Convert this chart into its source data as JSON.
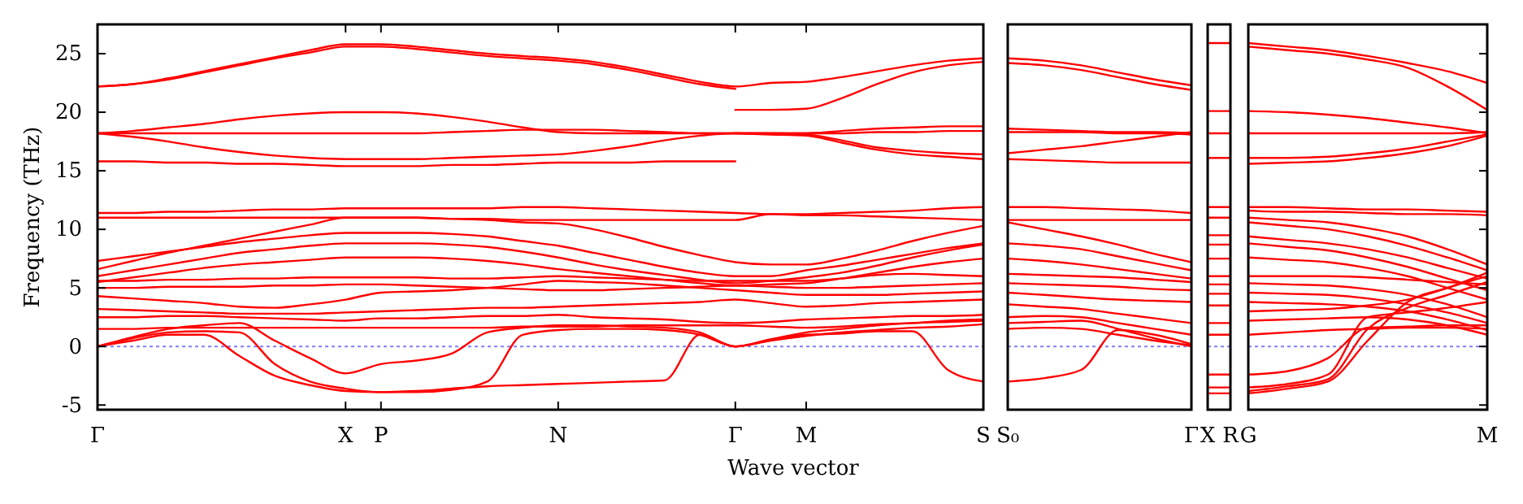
{
  "chart_data": [
    {
      "type": "line",
      "ylabel": "Frequency (THz)",
      "xlabel": "Wave vector",
      "ylim": [
        -5.4,
        27.5
      ],
      "yticks": [
        -5,
        0,
        5,
        10,
        15,
        20,
        25
      ],
      "categories": [
        "Γ",
        null,
        null,
        null,
        null,
        null,
        null,
        "X",
        "P",
        null,
        null,
        null,
        null,
        "N",
        null,
        null,
        null,
        null,
        "Γ",
        null,
        "M",
        null,
        null,
        null,
        null,
        "S"
      ],
      "ref_lines": [
        {
          "axis": "y",
          "value": 0,
          "color": "#7f7fff",
          "line_style": "dotted"
        }
      ],
      "series": [
        {
          "color": "#ff0000",
          "values": [
            22.2,
            22.4,
            22.9,
            23.5,
            24.1,
            24.7,
            25.3,
            25.8,
            25.8,
            25.6,
            25.3,
            25.0,
            24.8,
            24.6,
            24.3,
            23.8,
            23.2,
            22.6,
            22.2,
            22.5,
            22.6,
            23.0,
            23.5,
            24.0,
            24.4,
            24.6
          ]
        },
        {
          "color": "#ff0000",
          "values": [
            22.2,
            22.4,
            22.8,
            23.4,
            24.0,
            24.6,
            25.1,
            25.6,
            25.6,
            25.4,
            25.1,
            24.8,
            24.6,
            24.4,
            24.1,
            23.6,
            23.0,
            22.4,
            22.0,
            null,
            null,
            null,
            null,
            null,
            null,
            null
          ]
        },
        {
          "color": "#ff0000",
          "values": [
            null,
            null,
            null,
            null,
            null,
            null,
            null,
            null,
            null,
            null,
            null,
            null,
            null,
            null,
            null,
            null,
            null,
            null,
            20.2,
            20.2,
            20.3,
            21.2,
            22.4,
            23.4,
            24.0,
            24.3
          ]
        },
        {
          "color": "#ff0000",
          "values": [
            18.2,
            18.4,
            18.7,
            19.0,
            19.4,
            19.7,
            19.9,
            20.0,
            20.0,
            19.9,
            19.6,
            19.2,
            18.7,
            18.3,
            18.2,
            18.2,
            18.2,
            18.2,
            18.2,
            18.2,
            18.2,
            18.4,
            18.6,
            18.7,
            18.8,
            18.8
          ]
        },
        {
          "color": "#ff0000",
          "values": [
            18.2,
            18.2,
            18.2,
            18.2,
            18.2,
            18.2,
            18.2,
            18.2,
            18.2,
            18.2,
            18.3,
            18.4,
            18.5,
            18.5,
            18.5,
            18.4,
            18.3,
            18.2,
            18.2,
            18.2,
            18.2,
            18.2,
            18.3,
            18.3,
            18.4,
            18.4
          ]
        },
        {
          "color": "#ff0000",
          "values": [
            18.2,
            17.9,
            17.5,
            17.0,
            16.6,
            16.3,
            16.1,
            16.0,
            16.0,
            16.0,
            16.1,
            16.2,
            16.3,
            16.4,
            16.7,
            17.1,
            17.6,
            18.0,
            18.2,
            18.2,
            18.1,
            17.6,
            17.0,
            16.7,
            16.5,
            16.4
          ]
        },
        {
          "color": "#ff0000",
          "values": [
            15.8,
            15.8,
            15.7,
            15.7,
            15.6,
            15.6,
            15.5,
            15.4,
            15.4,
            15.4,
            15.5,
            15.5,
            15.6,
            15.7,
            15.7,
            15.7,
            15.8,
            15.8,
            15.8,
            null,
            null,
            null,
            null,
            null,
            null,
            null
          ]
        },
        {
          "color": "#ff0000",
          "values": [
            null,
            null,
            null,
            null,
            null,
            null,
            null,
            null,
            null,
            null,
            null,
            null,
            null,
            null,
            null,
            null,
            null,
            null,
            18.2,
            18.1,
            18.0,
            17.4,
            16.8,
            16.4,
            16.2,
            16.0
          ]
        },
        {
          "color": "#ff0000",
          "values": [
            11.4,
            11.4,
            11.5,
            11.5,
            11.6,
            11.7,
            11.7,
            11.8,
            11.8,
            11.8,
            11.8,
            11.8,
            11.9,
            11.9,
            11.8,
            11.7,
            11.6,
            11.5,
            11.4,
            11.3,
            11.3,
            11.4,
            11.5,
            11.6,
            11.8,
            11.9
          ]
        },
        {
          "color": "#ff0000",
          "values": [
            11.0,
            11.0,
            11.0,
            11.0,
            11.0,
            11.0,
            11.0,
            11.0,
            11.0,
            11.0,
            10.9,
            10.9,
            10.8,
            10.8,
            10.8,
            10.8,
            10.8,
            10.8,
            10.8,
            11.3,
            11.2,
            11.2,
            11.1,
            11.0,
            10.9,
            10.8
          ]
        },
        {
          "color": "#ff0000",
          "values": [
            6.6,
            7.3,
            8.0,
            8.6,
            9.2,
            9.8,
            10.4,
            11.0,
            11.0,
            11.0,
            10.9,
            10.8,
            10.6,
            10.5,
            10.0,
            9.3,
            8.5,
            7.8,
            7.2,
            7.0,
            7.0,
            7.5,
            8.2,
            9.0,
            9.7,
            10.3
          ]
        },
        {
          "color": "#ff0000",
          "values": [
            7.3,
            7.7,
            8.1,
            8.5,
            8.9,
            9.2,
            9.5,
            9.7,
            9.7,
            9.7,
            9.6,
            9.4,
            9.0,
            8.6,
            8.0,
            7.4,
            6.8,
            6.3,
            6.0,
            6.0,
            6.5,
            6.9,
            7.4,
            7.9,
            8.4,
            8.8
          ]
        },
        {
          "color": "#ff0000",
          "values": [
            6.0,
            6.5,
            7.0,
            7.5,
            8.0,
            8.3,
            8.6,
            8.8,
            8.8,
            8.8,
            8.7,
            8.5,
            8.1,
            7.6,
            7.0,
            6.5,
            6.1,
            5.7,
            5.4,
            5.6,
            5.9,
            6.3,
            6.9,
            7.6,
            8.2,
            8.7
          ]
        },
        {
          "color": "#ff0000",
          "values": [
            5.5,
            5.9,
            6.3,
            6.7,
            7.0,
            7.2,
            7.4,
            7.6,
            7.6,
            7.6,
            7.5,
            7.3,
            7.0,
            6.6,
            6.3,
            6.0,
            5.7,
            5.4,
            5.2,
            5.3,
            5.4,
            5.8,
            6.3,
            6.8,
            7.2,
            7.5
          ]
        },
        {
          "color": "#ff0000",
          "values": [
            5.6,
            5.6,
            5.7,
            5.7,
            5.8,
            5.8,
            5.9,
            5.9,
            5.9,
            5.9,
            5.8,
            5.8,
            5.9,
            6.0,
            5.9,
            5.8,
            5.7,
            5.6,
            5.6,
            5.6,
            5.6,
            5.8,
            6.1,
            6.2,
            6.1,
            6.0
          ]
        },
        {
          "color": "#ff0000",
          "values": [
            5.0,
            5.0,
            5.1,
            5.1,
            5.1,
            5.2,
            5.2,
            5.3,
            5.3,
            5.2,
            5.1,
            5.0,
            4.9,
            4.8,
            4.8,
            4.9,
            5.0,
            5.1,
            5.2,
            5.1,
            5.0,
            5.0,
            5.1,
            5.2,
            5.3,
            5.4
          ]
        },
        {
          "color": "#ff0000",
          "values": [
            4.3,
            4.1,
            3.9,
            3.7,
            3.4,
            3.3,
            3.6,
            4.0,
            4.6,
            4.7,
            4.8,
            5.0,
            5.3,
            5.6,
            5.5,
            5.4,
            5.2,
            5.0,
            4.8,
            4.6,
            4.4,
            4.4,
            4.4,
            4.5,
            4.6,
            4.7
          ]
        },
        {
          "color": "#ff0000",
          "values": [
            3.2,
            3.1,
            3.0,
            2.9,
            2.8,
            2.8,
            2.8,
            2.9,
            3.0,
            3.1,
            3.2,
            3.3,
            3.3,
            3.4,
            3.5,
            3.6,
            3.7,
            3.8,
            4.0,
            3.7,
            3.4,
            3.5,
            3.7,
            3.8,
            3.9,
            4.0
          ]
        },
        {
          "color": "#ff0000",
          "values": [
            2.5,
            2.5,
            2.6,
            2.6,
            2.5,
            2.4,
            2.3,
            2.2,
            2.4,
            2.4,
            2.5,
            2.6,
            2.6,
            2.7,
            2.5,
            2.4,
            2.3,
            2.1,
            2.0,
            2.1,
            2.3,
            2.4,
            2.5,
            2.6,
            2.6,
            2.7
          ]
        },
        {
          "color": "#ff0000",
          "values": [
            1.5,
            1.5,
            1.6,
            1.6,
            1.6,
            1.6,
            1.6,
            1.6,
            1.6,
            1.6,
            1.6,
            1.6,
            1.7,
            1.7,
            1.7,
            1.8,
            1.8,
            1.8,
            1.8,
            1.7,
            1.6,
            1.7,
            1.9,
            2.0,
            2.2,
            2.3
          ]
        },
        {
          "color": "#ff0000",
          "values": [
            0,
            0.8,
            1.5,
            1.8,
            2.0,
            0.5,
            -1.0,
            -2.3,
            -1.5,
            -1.2,
            -0.6,
            1.2,
            1.6,
            1.8,
            1.8,
            1.7,
            1.6,
            1.2,
            0,
            0.6,
            1.2,
            1.5,
            1.8,
            2.0,
            2.1,
            2.2
          ]
        },
        {
          "color": "#ff0000",
          "values": [
            0,
            0.7,
            1.2,
            1.3,
            1.2,
            -1.5,
            -3.0,
            -3.6,
            -3.9,
            -3.9,
            -3.7,
            -3.0,
            1.0,
            1.4,
            1.5,
            1.5,
            1.4,
            1.0,
            0,
            0.5,
            0.9,
            1.2,
            1.4,
            1.6,
            1.7,
            1.9
          ]
        },
        {
          "color": "#ff0000",
          "values": [
            0,
            0.5,
            1.0,
            1.0,
            -0.8,
            -2.5,
            -3.3,
            -3.8,
            -3.9,
            -3.8,
            -3.6,
            -3.4,
            -3.3,
            -3.2,
            -3.1,
            -3.0,
            -2.9,
            1.0,
            0,
            0.6,
            1.0,
            1.1,
            1.3,
            1.3,
            -2.0,
            -3.0
          ]
        }
      ]
    },
    {
      "type": "line",
      "tick_labels": "x",
      "ylim": [
        -5.4,
        27.5
      ],
      "yticks": [
        -5,
        0,
        5,
        10,
        15,
        20,
        25
      ],
      "categories": [
        "S₀",
        null,
        null,
        null,
        null,
        "Γ"
      ],
      "ref_lines": [
        {
          "axis": "y",
          "value": 0,
          "color": "#7f7fff",
          "line_style": "dotted"
        }
      ],
      "series": [
        {
          "color": "#ff0000",
          "values": [
            24.6,
            24.4,
            24.0,
            23.4,
            22.8,
            22.3
          ]
        },
        {
          "color": "#ff0000",
          "values": [
            24.2,
            24.0,
            23.6,
            23.0,
            22.4,
            21.9
          ]
        },
        {
          "color": "#ff0000",
          "values": [
            18.6,
            18.5,
            18.4,
            18.3,
            18.3,
            18.2
          ]
        },
        {
          "color": "#ff0000",
          "values": [
            18.3,
            18.3,
            18.3,
            18.2,
            18.2,
            18.1
          ]
        },
        {
          "color": "#ff0000",
          "values": [
            16.5,
            16.8,
            17.1,
            17.5,
            17.9,
            18.3
          ]
        },
        {
          "color": "#ff0000",
          "values": [
            16.0,
            15.9,
            15.8,
            15.7,
            15.7,
            15.7
          ]
        },
        {
          "color": "#ff0000",
          "values": [
            11.9,
            11.9,
            11.8,
            11.7,
            11.6,
            11.4
          ]
        },
        {
          "color": "#ff0000",
          "values": [
            10.8,
            10.8,
            10.8,
            10.8,
            10.8,
            10.8
          ]
        },
        {
          "color": "#ff0000",
          "values": [
            10.6,
            10.0,
            9.4,
            8.7,
            7.9,
            7.2
          ]
        },
        {
          "color": "#ff0000",
          "values": [
            8.8,
            8.6,
            8.3,
            7.7,
            7.1,
            6.5
          ]
        },
        {
          "color": "#ff0000",
          "values": [
            7.5,
            7.3,
            7.0,
            6.6,
            6.2,
            5.8
          ]
        },
        {
          "color": "#ff0000",
          "values": [
            6.2,
            6.1,
            6.0,
            5.9,
            5.7,
            5.5
          ]
        },
        {
          "color": "#ff0000",
          "values": [
            5.4,
            5.3,
            5.2,
            5.1,
            4.9,
            4.8
          ]
        },
        {
          "color": "#ff0000",
          "values": [
            4.6,
            4.4,
            4.2,
            4.0,
            3.9,
            3.8
          ]
        },
        {
          "color": "#ff0000",
          "values": [
            3.6,
            3.4,
            3.2,
            2.8,
            2.4,
            2.0
          ]
        },
        {
          "color": "#ff0000",
          "values": [
            2.5,
            2.6,
            2.5,
            2.0,
            1.5,
            1.0
          ]
        },
        {
          "color": "#ff0000",
          "values": [
            2.0,
            2.1,
            2.2,
            1.5,
            0.7,
            0
          ]
        },
        {
          "color": "#ff0000",
          "values": [
            1.5,
            1.6,
            1.5,
            1.0,
            0.5,
            0.1
          ]
        },
        {
          "color": "#ff0000",
          "values": [
            -3.0,
            -2.7,
            -2.0,
            1.4,
            1.0,
            0.2
          ]
        }
      ]
    },
    {
      "type": "line",
      "tick_labels": "x",
      "ylim": [
        -5.4,
        27.5
      ],
      "yticks": [
        -5,
        0,
        5,
        10,
        15,
        20,
        25
      ],
      "categories": [
        "X",
        "R"
      ],
      "ref_lines": [
        {
          "axis": "y",
          "value": 0,
          "color": "#7f7fff",
          "line_style": "dotted"
        }
      ],
      "series": [
        {
          "color": "#ff0000",
          "values": [
            25.9,
            25.9
          ]
        },
        {
          "color": "#ff0000",
          "values": [
            20.1,
            20.1
          ]
        },
        {
          "color": "#ff0000",
          "values": [
            18.2,
            18.2
          ]
        },
        {
          "color": "#ff0000",
          "values": [
            16.1,
            16.1
          ]
        },
        {
          "color": "#ff0000",
          "values": [
            11.9,
            11.9
          ]
        },
        {
          "color": "#ff0000",
          "values": [
            11.0,
            11.0
          ]
        },
        {
          "color": "#ff0000",
          "values": [
            9.5,
            9.5
          ]
        },
        {
          "color": "#ff0000",
          "values": [
            8.7,
            8.7
          ]
        },
        {
          "color": "#ff0000",
          "values": [
            7.5,
            7.5
          ]
        },
        {
          "color": "#ff0000",
          "values": [
            6.0,
            6.0
          ]
        },
        {
          "color": "#ff0000",
          "values": [
            5.3,
            5.3
          ]
        },
        {
          "color": "#ff0000",
          "values": [
            4.5,
            4.5
          ]
        },
        {
          "color": "#ff0000",
          "values": [
            3.5,
            3.5
          ]
        },
        {
          "color": "#ff0000",
          "values": [
            2.0,
            2.0
          ]
        },
        {
          "color": "#ff0000",
          "values": [
            1.0,
            1.0
          ]
        },
        {
          "color": "#ff0000",
          "values": [
            -2.4,
            -2.4
          ]
        },
        {
          "color": "#ff0000",
          "values": [
            -3.5,
            -3.5
          ]
        },
        {
          "color": "#ff0000",
          "values": [
            -4.0,
            -4.0
          ]
        }
      ]
    },
    {
      "type": "line",
      "tick_labels": "x",
      "ylim": [
        -5.4,
        27.5
      ],
      "yticks": [
        -5,
        0,
        5,
        10,
        15,
        20,
        25
      ],
      "categories": [
        "G",
        null,
        null,
        null,
        null,
        null,
        "M"
      ],
      "ref_lines": [
        {
          "axis": "y",
          "value": 0,
          "color": "#7f7fff",
          "line_style": "dotted"
        }
      ],
      "series": [
        {
          "color": "#ff0000",
          "values": [
            25.9,
            25.6,
            25.3,
            24.8,
            24.2,
            23.5,
            22.5
          ]
        },
        {
          "color": "#ff0000",
          "values": [
            25.6,
            25.3,
            25.0,
            24.5,
            23.8,
            22.2,
            20.2
          ]
        },
        {
          "color": "#ff0000",
          "values": [
            20.1,
            20.0,
            19.8,
            19.5,
            19.1,
            18.7,
            18.2
          ]
        },
        {
          "color": "#ff0000",
          "values": [
            18.2,
            18.2,
            18.2,
            18.2,
            18.2,
            18.2,
            18.3
          ]
        },
        {
          "color": "#ff0000",
          "values": [
            16.1,
            16.1,
            16.2,
            16.5,
            16.9,
            17.5,
            18.1
          ]
        },
        {
          "color": "#ff0000",
          "values": [
            15.6,
            15.7,
            15.8,
            16.1,
            16.5,
            17.1,
            18.0
          ]
        },
        {
          "color": "#ff0000",
          "values": [
            11.9,
            11.9,
            11.8,
            11.7,
            11.7,
            11.6,
            11.5
          ]
        },
        {
          "color": "#ff0000",
          "values": [
            11.6,
            11.5,
            11.5,
            11.4,
            11.3,
            11.3,
            11.2
          ]
        },
        {
          "color": "#ff0000",
          "values": [
            11.0,
            10.8,
            10.6,
            10.1,
            9.4,
            8.3,
            7.0
          ]
        },
        {
          "color": "#ff0000",
          "values": [
            10.6,
            10.3,
            10.0,
            9.4,
            8.6,
            7.6,
            6.5
          ]
        },
        {
          "color": "#ff0000",
          "values": [
            9.4,
            9.1,
            8.8,
            8.3,
            7.6,
            6.7,
            5.8
          ]
        },
        {
          "color": "#ff0000",
          "values": [
            8.8,
            8.5,
            8.2,
            7.6,
            6.8,
            5.8,
            4.8
          ]
        },
        {
          "color": "#ff0000",
          "values": [
            7.6,
            7.4,
            7.2,
            6.7,
            6.0,
            5.0,
            4.0
          ]
        },
        {
          "color": "#ff0000",
          "values": [
            6.0,
            6.0,
            6.0,
            5.9,
            5.7,
            5.5,
            5.3
          ]
        },
        {
          "color": "#ff0000",
          "values": [
            5.4,
            5.3,
            5.2,
            4.9,
            4.4,
            3.6,
            2.5
          ]
        },
        {
          "color": "#ff0000",
          "values": [
            4.6,
            4.5,
            4.4,
            4.1,
            3.6,
            2.9,
            2.0
          ]
        },
        {
          "color": "#ff0000",
          "values": [
            3.8,
            3.7,
            3.6,
            3.4,
            3.0,
            2.3,
            1.4
          ]
        },
        {
          "color": "#ff0000",
          "values": [
            3.0,
            3.1,
            3.2,
            3.5,
            4.0,
            5.0,
            6.3
          ]
        },
        {
          "color": "#ff0000",
          "values": [
            2.2,
            2.3,
            2.4,
            2.5,
            2.3,
            1.8,
            1.0
          ]
        },
        {
          "color": "#ff0000",
          "values": [
            1.0,
            1.2,
            1.4,
            1.5,
            1.6,
            1.6,
            1.5
          ]
        },
        {
          "color": "#ff0000",
          "values": [
            -2.4,
            -2.1,
            -1.0,
            1.6,
            1.7,
            1.8,
            1.8
          ]
        },
        {
          "color": "#ff0000",
          "values": [
            -3.5,
            -3.2,
            -2.4,
            2.5,
            2.9,
            3.3,
            3.8
          ]
        },
        {
          "color": "#ff0000",
          "values": [
            -3.8,
            -3.4,
            -2.8,
            1.5,
            3.3,
            4.4,
            5.5
          ]
        },
        {
          "color": "#ff0000",
          "values": [
            -4.0,
            -3.6,
            -3.0,
            0.5,
            3.8,
            5.0,
            6.0
          ]
        }
      ]
    }
  ]
}
